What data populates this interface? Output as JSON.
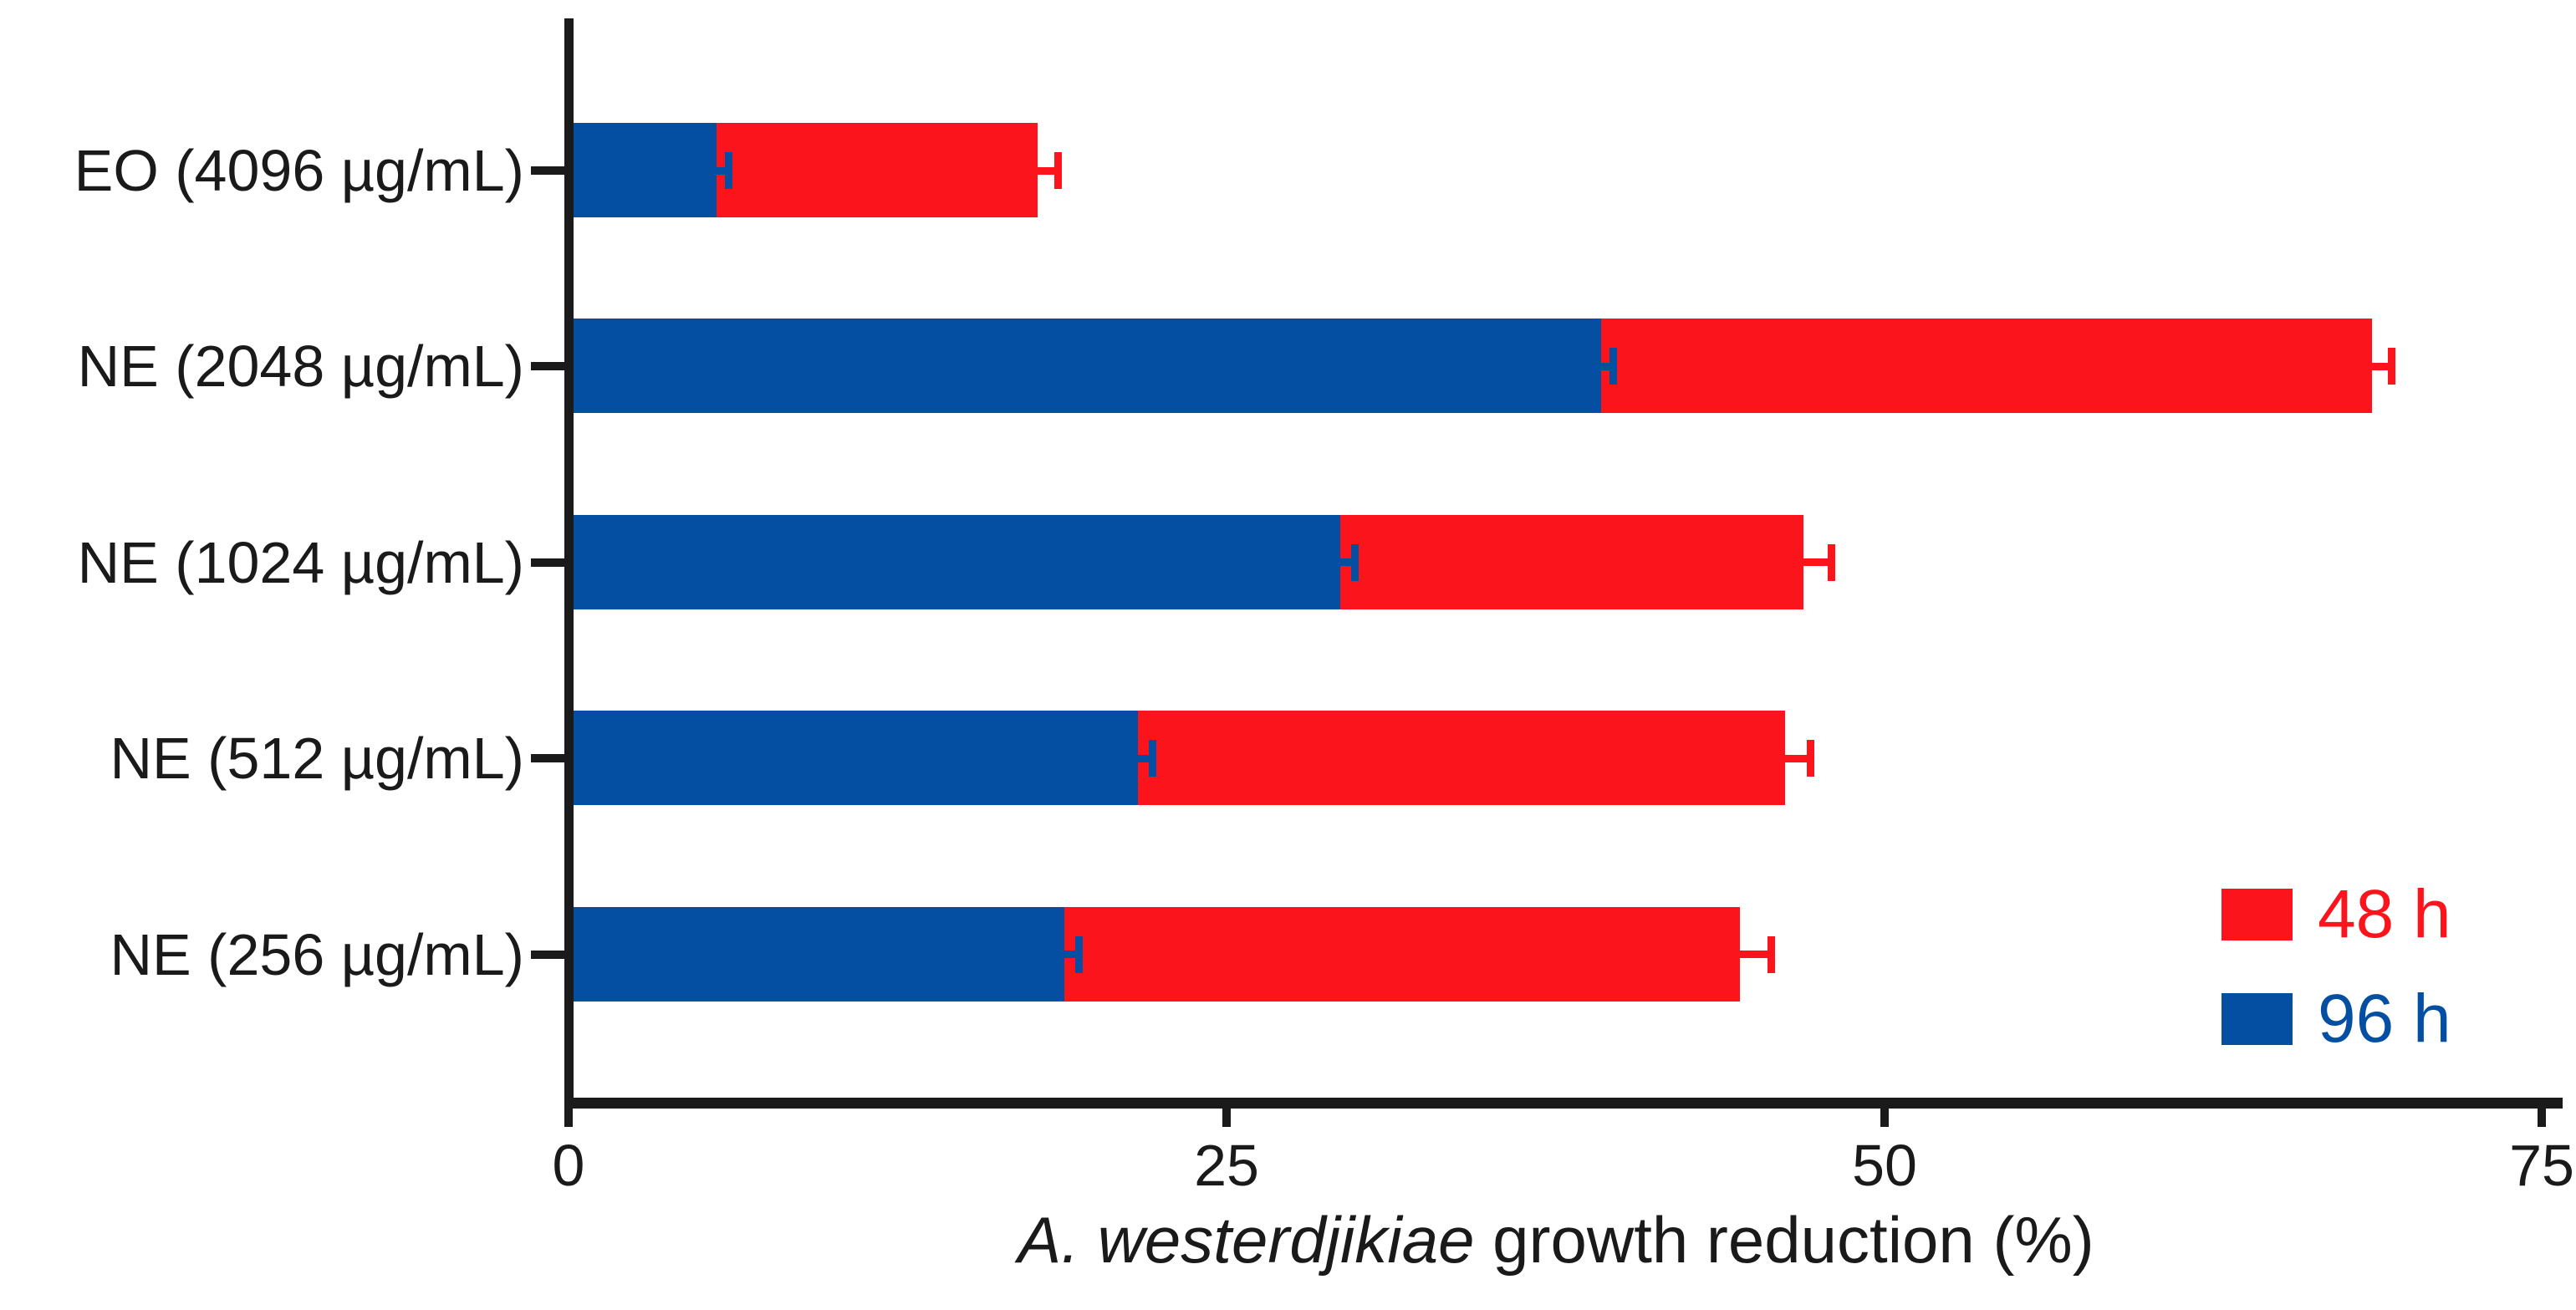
{
  "figure": {
    "background": "#ffffff",
    "axis_color": "#1a1a1a"
  },
  "chart_data": {
    "type": "bar",
    "orientation": "horizontal",
    "title": "",
    "xlabel_italic": "A. westerdjikiae",
    "xlabel_rest": " growth reduction (%)",
    "categories": [
      "EO (4096 µg/mL)",
      "NE (2048 µg/mL)",
      "NE (1024 µg/mL)",
      "NE (512 µg/mL)",
      "NE (256 µg/mL)"
    ],
    "series": [
      {
        "name": "48 h",
        "color": "#FB141C",
        "values": [
          17.8,
          68.5,
          46.9,
          46.2,
          44.5
        ],
        "errors": [
          0.8,
          0.8,
          1.1,
          1.0,
          1.2
        ]
      },
      {
        "name": "96 h",
        "color": "#054FA3",
        "values": [
          5.6,
          39.2,
          29.3,
          21.6,
          18.8
        ],
        "errors": [
          0.5,
          0.5,
          0.6,
          0.6,
          0.6
        ]
      }
    ],
    "xlim": [
      0,
      75
    ],
    "xticks": [
      0,
      25,
      50,
      75
    ],
    "grid": false,
    "error_bars": "right caps only",
    "bar_style": "overlapped (48 h behind, 96 h in front), both starting at 0",
    "legend": {
      "position": "bottom-right",
      "entries": [
        {
          "label": "48 h",
          "color": "#FB141C"
        },
        {
          "label": "96 h",
          "color": "#054FA3"
        }
      ]
    }
  }
}
